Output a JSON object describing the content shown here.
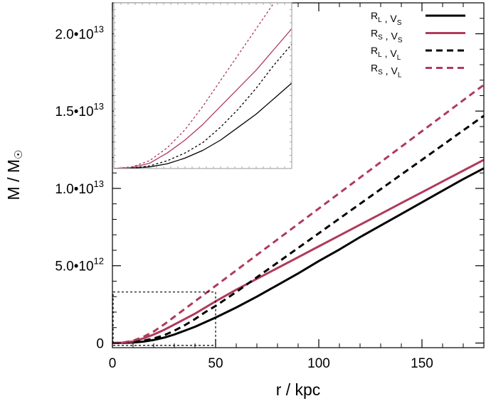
{
  "chart_data": {
    "type": "line",
    "xlabel": "r / kpc",
    "ylabel_main": "M / M",
    "ylabel_symbol": "☉",
    "xlim": [
      0,
      180
    ],
    "ylim": [
      -300000000000.0,
      22000000000000.0
    ],
    "x_ticks": [
      {
        "value": 0,
        "label": "0"
      },
      {
        "value": 50,
        "label": "50"
      },
      {
        "value": 100,
        "label": "100"
      },
      {
        "value": 150,
        "label": "150"
      }
    ],
    "y_ticks": [
      {
        "value": 0,
        "label": "0",
        "exp": ""
      },
      {
        "value": 5000000000000.0,
        "label": "5.0•10",
        "exp": "12"
      },
      {
        "value": 10000000000000.0,
        "label": "1.0•10",
        "exp": "13"
      },
      {
        "value": 15000000000000.0,
        "label": "1.5•10",
        "exp": "13"
      },
      {
        "value": 20000000000000.0,
        "label": "2.0•10",
        "exp": "13"
      }
    ],
    "series": [
      {
        "name": "RL, VS",
        "sub1": "L",
        "sub2": "S",
        "color": "#000000",
        "dash": false,
        "x": [
          0,
          5,
          10,
          15,
          20,
          25,
          30,
          35,
          40,
          45,
          50,
          60,
          70,
          80,
          90,
          100,
          110,
          120,
          130,
          140,
          150,
          160,
          170,
          180
        ],
        "y": [
          0,
          10000000000.0,
          30000000000.0,
          90000000000.0,
          200000000000.0,
          350000000000.0,
          550000000000.0,
          800000000000.0,
          1050000000000.0,
          1350000000000.0,
          1650000000000.0,
          2300000000000.0,
          3000000000000.0,
          3750000000000.0,
          4500000000000.0,
          5300000000000.0,
          6050000000000.0,
          6850000000000.0,
          7600000000000.0,
          8350000000000.0,
          9100000000000.0,
          9850000000000.0,
          10600000000000.0,
          11300000000000.0
        ]
      },
      {
        "name": "RS, VS",
        "sub1": "S",
        "sub2": "S",
        "color": "#b03a5b",
        "dash": false,
        "x": [
          0,
          5,
          10,
          15,
          20,
          25,
          30,
          35,
          40,
          45,
          50,
          60,
          70,
          80,
          90,
          100,
          110,
          120,
          130,
          140,
          150,
          160,
          170,
          180
        ],
        "y": [
          0,
          20000000000.0,
          100000000000.0,
          300000000000.0,
          550000000000.0,
          850000000000.0,
          1200000000000.0,
          1550000000000.0,
          1900000000000.0,
          2300000000000.0,
          2700000000000.0,
          3450000000000.0,
          4150000000000.0,
          4850000000000.0,
          5550000000000.0,
          6250000000000.0,
          6950000000000.0,
          7650000000000.0,
          8350000000000.0,
          9050000000000.0,
          9750000000000.0,
          10450000000000.0,
          11150000000000.0,
          11850000000000.0
        ]
      },
      {
        "name": "RL, VL",
        "sub1": "L",
        "sub2": "L",
        "color": "#000000",
        "dash": true,
        "x": [
          0,
          5,
          10,
          15,
          20,
          25,
          30,
          35,
          40,
          45,
          50,
          60,
          70,
          80,
          90,
          100,
          110,
          120,
          130,
          140,
          150,
          160,
          170,
          180
        ],
        "y": [
          0,
          10000000000.0,
          50000000000.0,
          150000000000.0,
          300000000000.0,
          500000000000.0,
          800000000000.0,
          1150000000000.0,
          1550000000000.0,
          2000000000000.0,
          2400000000000.0,
          3300000000000.0,
          4250000000000.0,
          5200000000000.0,
          6150000000000.0,
          7100000000000.0,
          8050000000000.0,
          9000000000000.0,
          9950000000000.0,
          10900000000000.0,
          11850000000000.0,
          12800000000000.0,
          13750000000000.0,
          14700000000000.0
        ]
      },
      {
        "name": "RS, VL",
        "sub1": "S",
        "sub2": "L",
        "color": "#b03a5b",
        "dash": true,
        "x": [
          0,
          5,
          10,
          15,
          20,
          25,
          30,
          35,
          40,
          45,
          50,
          60,
          70,
          80,
          90,
          100,
          110,
          120,
          130,
          140,
          150,
          160,
          170,
          180
        ],
        "y": [
          0,
          30000000000.0,
          150000000000.0,
          400000000000.0,
          750000000000.0,
          1200000000000.0,
          1700000000000.0,
          2200000000000.0,
          2700000000000.0,
          3200000000000.0,
          3700000000000.0,
          4700000000000.0,
          5700000000000.0,
          6700000000000.0,
          7700000000000.0,
          8700000000000.0,
          9700000000000.0,
          10700000000000.0,
          11700000000000.0,
          12700000000000.0,
          13700000000000.0,
          14700000000000.0,
          15700000000000.0,
          16700000000000.0
        ]
      }
    ],
    "inset": {
      "xlim": [
        0,
        50
      ],
      "ylim": [
        0,
        3200000000000.0
      ],
      "zoom_box": {
        "x": [
          0,
          50
        ],
        "y": [
          -150000000000.0,
          3300000000000.0
        ]
      }
    },
    "legend_position": "top-right"
  }
}
